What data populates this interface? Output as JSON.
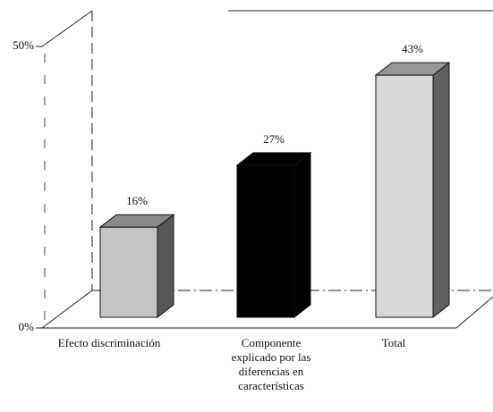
{
  "chart_data": {
    "type": "bar3d",
    "categories": [
      "Efecto discriminación",
      "Componente explicado por las diferencias en características",
      "Total"
    ],
    "values": [
      16,
      27,
      43
    ],
    "value_labels": [
      "16%",
      "27%",
      "43%"
    ],
    "colors": [
      "#c4c4c4",
      "#000000",
      "#d8d8d8"
    ],
    "ylim": [
      0,
      50
    ],
    "yticks": [
      {
        "value": 0,
        "label": "0%"
      },
      {
        "value": 50,
        "label": "50%"
      }
    ]
  }
}
